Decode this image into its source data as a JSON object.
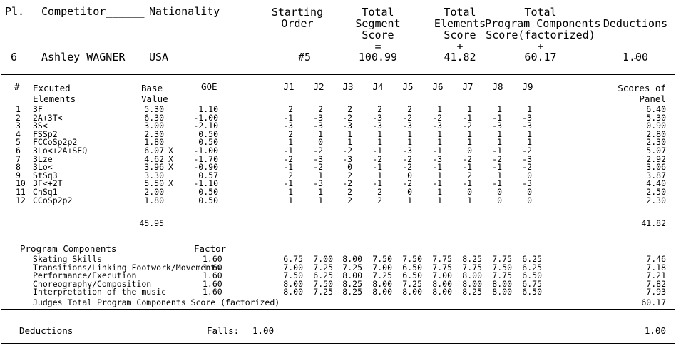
{
  "header": {
    "pl_label": "Pl.",
    "competitor_label": "Competitor______",
    "nationality_label": "Nationality",
    "starting_order_label": "Starting\nOrder",
    "tss_label": "Total\nSegment\nScore\n=",
    "tes_label": "Total\nElements\nScore\n+",
    "pcs_label": "Total\nProgram Components\nScore(factorized)\n+",
    "deductions_label": "Deductions\n\n\n-"
  },
  "skater": {
    "place": "6",
    "name": "Ashley WAGNER",
    "nation": "USA",
    "starting_order": "#5",
    "tss": "100.99",
    "tes": "41.82",
    "pcs": "60.17",
    "deductions": "1.00"
  },
  "elements_header": {
    "num": "#",
    "elem": "Excuted\nElements",
    "base": "Base\nValue",
    "goe": "GOE",
    "judges": [
      "J1",
      "J2",
      "J3",
      "J4",
      "J5",
      "J6",
      "J7",
      "J8",
      "J9"
    ],
    "panel": "Scores of\nPanel"
  },
  "elements": [
    {
      "n": "1",
      "name": "3F",
      "base": "5.30",
      "x": "",
      "goe": "1.10",
      "j": [
        "2",
        "2",
        "2",
        "2",
        "2",
        "1",
        "1",
        "1",
        "1"
      ],
      "panel": "6.40"
    },
    {
      "n": "2",
      "name": "2A+3T<",
      "base": "6.30",
      "x": "",
      "goe": "-1.00",
      "j": [
        "-1",
        "-3",
        "-2",
        "-3",
        "-2",
        "-2",
        "-1",
        "-1",
        "-3"
      ],
      "panel": "5.30"
    },
    {
      "n": "3",
      "name": "3S<",
      "base": "3.00",
      "x": "",
      "goe": "-2.10",
      "j": [
        "-3",
        "-3",
        "-3",
        "-3",
        "-3",
        "-3",
        "-2",
        "-3",
        "-3"
      ],
      "panel": "0.90"
    },
    {
      "n": "4",
      "name": "FSSp2",
      "base": "2.30",
      "x": "",
      "goe": "0.50",
      "j": [
        "2",
        "1",
        "1",
        "1",
        "1",
        "1",
        "1",
        "1",
        "1"
      ],
      "panel": "2.80"
    },
    {
      "n": "5",
      "name": "FCCoSp2p2",
      "base": "1.80",
      "x": "",
      "goe": "0.50",
      "j": [
        "1",
        "0",
        "1",
        "1",
        "1",
        "1",
        "1",
        "1",
        "1"
      ],
      "panel": "2.30"
    },
    {
      "n": "6",
      "name": "3Lo<+2A+SEQ",
      "base": "6.07",
      "x": "X",
      "goe": "-1.00",
      "j": [
        "-1",
        "-2",
        "-2",
        "-1",
        "-3",
        "-1",
        "0",
        "-1",
        "-2"
      ],
      "panel": "5.07"
    },
    {
      "n": "7",
      "name": "3Lze",
      "base": "4.62",
      "x": "X",
      "goe": "-1.70",
      "j": [
        "-2",
        "-3",
        "-3",
        "-2",
        "-2",
        "-3",
        "-2",
        "-2",
        "-3"
      ],
      "panel": "2.92"
    },
    {
      "n": "8",
      "name": "3Lo<",
      "base": "3.96",
      "x": "X",
      "goe": "-0.90",
      "j": [
        "-1",
        "-2",
        "0",
        "-1",
        "-2",
        "-1",
        "-1",
        "-1",
        "-2"
      ],
      "panel": "3.06"
    },
    {
      "n": "9",
      "name": "StSq3",
      "base": "3.30",
      "x": "",
      "goe": "0.57",
      "j": [
        "2",
        "1",
        "2",
        "1",
        "0",
        "1",
        "2",
        "1",
        "0"
      ],
      "panel": "3.87"
    },
    {
      "n": "10",
      "name": "3F<+2T",
      "base": "5.50",
      "x": "X",
      "goe": "-1.10",
      "j": [
        "-1",
        "-3",
        "-2",
        "-1",
        "-2",
        "-1",
        "-1",
        "-1",
        "-3"
      ],
      "panel": "4.40"
    },
    {
      "n": "11",
      "name": "ChSq1",
      "base": "2.00",
      "x": "",
      "goe": "0.50",
      "j": [
        "1",
        "1",
        "2",
        "2",
        "0",
        "1",
        "0",
        "0",
        "0"
      ],
      "panel": "2.50"
    },
    {
      "n": "12",
      "name": "CCoSp2p2",
      "base": "1.80",
      "x": "",
      "goe": "0.50",
      "j": [
        "1",
        "1",
        "2",
        "2",
        "1",
        "1",
        "1",
        "0",
        "0"
      ],
      "panel": "2.30"
    }
  ],
  "base_total": "45.95",
  "panel_total": "41.82",
  "pc_header": {
    "title": "Program Components",
    "factor": "Factor"
  },
  "components": [
    {
      "name": "Skating Skills",
      "factor": "1.60",
      "j": [
        "6.75",
        "7.00",
        "8.00",
        "7.50",
        "7.50",
        "7.75",
        "8.25",
        "7.75",
        "6.25"
      ],
      "score": "7.46"
    },
    {
      "name": "Transitions/Linking Footwork/Movements",
      "factor": "1.60",
      "j": [
        "7.00",
        "7.25",
        "7.25",
        "7.00",
        "6.50",
        "7.75",
        "7.75",
        "7.50",
        "6.25"
      ],
      "score": "7.18"
    },
    {
      "name": "Performance/Execution",
      "factor": "1.60",
      "j": [
        "7.50",
        "6.25",
        "8.00",
        "7.25",
        "6.50",
        "7.00",
        "8.00",
        "7.75",
        "6.50"
      ],
      "score": "7.21"
    },
    {
      "name": "Choreography/Composition",
      "factor": "1.60",
      "j": [
        "8.00",
        "7.50",
        "8.25",
        "8.00",
        "7.25",
        "8.00",
        "8.00",
        "8.00",
        "6.75"
      ],
      "score": "7.82"
    },
    {
      "name": "Interpretation of the music",
      "factor": "1.60",
      "j": [
        "8.00",
        "7.25",
        "8.25",
        "8.00",
        "8.00",
        "8.00",
        "8.25",
        "8.00",
        "6.50"
      ],
      "score": "7.93"
    }
  ],
  "pcs_total_label": "Judges Total Program Components Score (factorized)",
  "pcs_total": "60.17",
  "footer": {
    "deductions_label": "Deductions",
    "falls_label": "Falls:",
    "falls_value": "1.00",
    "total": "1.00"
  }
}
